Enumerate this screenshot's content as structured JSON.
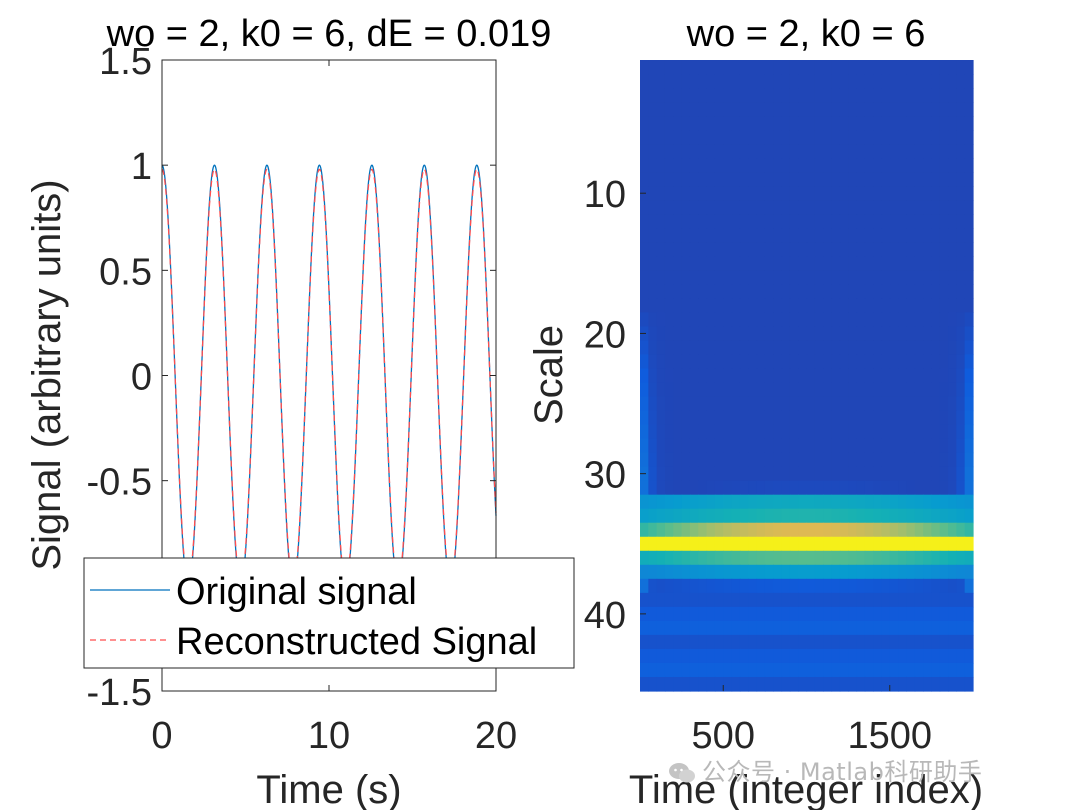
{
  "chart_data": [
    {
      "type": "line",
      "title": "wo = 2, k0 = 6, dE = 0.019",
      "xlabel": "Time (s)",
      "ylabel": "Signal (arbitrary units)",
      "xlim": [
        0,
        20
      ],
      "ylim": [
        -1.5,
        1.5
      ],
      "xticks": [
        "0",
        "10",
        "20"
      ],
      "yticks": [
        "1.5",
        "1",
        "0.5",
        "0",
        "-0.5",
        "-1",
        "-1.5"
      ],
      "x": [
        0,
        20
      ],
      "series": [
        {
          "name": "Original signal",
          "function": "cos(2*t)",
          "color": "#0072bd",
          "style": "solid"
        },
        {
          "name": "Reconstructed Signal",
          "function": "0.98*cos(2*t)",
          "color": "#ff4d4d",
          "style": "dashed"
        }
      ],
      "legend": "bottom"
    },
    {
      "type": "heatmap",
      "title": "wo = 2, k0 = 6",
      "xlabel": "Time (integer index)",
      "ylabel": "Scale",
      "xlim": [
        0,
        2000
      ],
      "ylim": [
        0.5,
        45.5
      ],
      "xticks": [
        "500",
        "1500"
      ],
      "yticks": [
        "10",
        "20",
        "30",
        "40"
      ],
      "band_profile": [
        {
          "scale": 31,
          "value": 0.08
        },
        {
          "scale": 32,
          "value": 0.45
        },
        {
          "scale": 33,
          "value": 0.52
        },
        {
          "scale": 34,
          "value": 0.72
        },
        {
          "scale": 35,
          "value": 0.98
        },
        {
          "scale": 36,
          "value": 0.62
        },
        {
          "scale": 37,
          "value": 0.38
        },
        {
          "scale": 38,
          "value": 0.12
        }
      ],
      "colormap": "parula"
    }
  ],
  "watermark": {
    "text": "公众号 · Matlab科研助手"
  }
}
